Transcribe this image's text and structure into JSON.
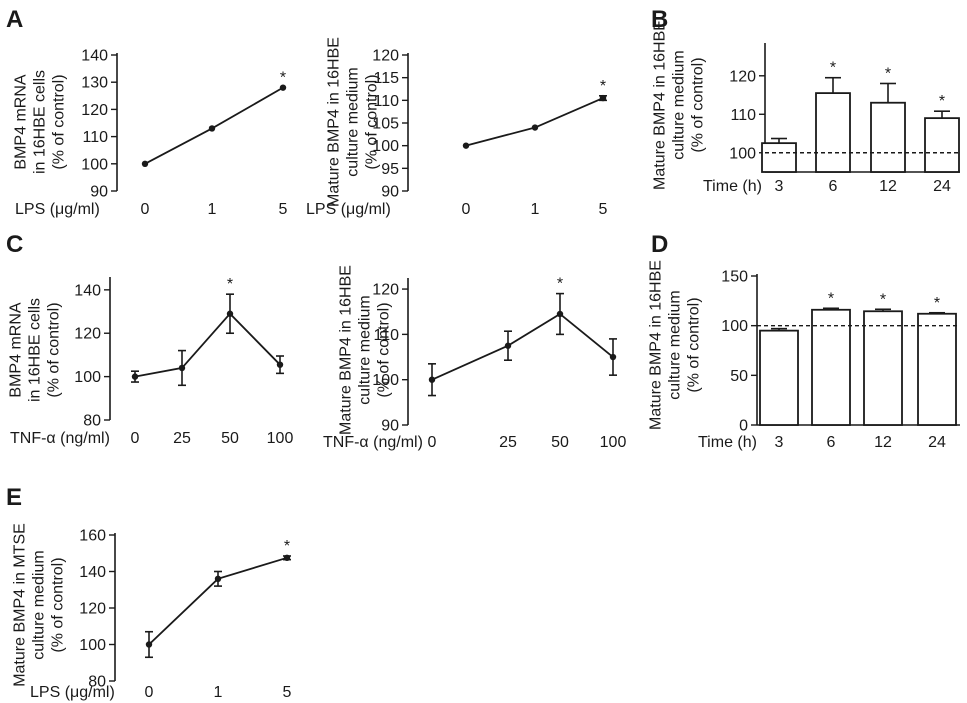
{
  "chart_data": [
    {
      "id": "A1",
      "panel_label": "A",
      "type": "line",
      "ylabel": [
        "BMP4 mRNA",
        "in 16HBE cells",
        "(% of control)"
      ],
      "xlabel": "LPS (μg/ml)",
      "categories": [
        "0",
        "1",
        "5"
      ],
      "values": [
        100,
        113,
        128
      ],
      "errors": [
        0,
        0,
        0
      ],
      "significance": [
        "",
        "",
        "*"
      ],
      "ylim": [
        90,
        140
      ],
      "yticks": [
        90,
        100,
        110,
        120,
        130,
        140
      ]
    },
    {
      "id": "A2",
      "panel_label": "",
      "type": "line",
      "ylabel": [
        "Mature BMP4 in 16HBE",
        "culture medium",
        "(% of  control)"
      ],
      "xlabel": "LPS (μg/ml)",
      "categories": [
        "0",
        "1",
        "5"
      ],
      "values": [
        100,
        104,
        110.5
      ],
      "errors": [
        0,
        0,
        0.5
      ],
      "significance": [
        "",
        "",
        "*"
      ],
      "ylim": [
        90,
        120
      ],
      "yticks": [
        90,
        95,
        100,
        105,
        110,
        115,
        120
      ]
    },
    {
      "id": "B",
      "panel_label": "B",
      "type": "bar",
      "ylabel": [
        "Mature BMP4 in 16HBE",
        "culture medium",
        "(% of  control)"
      ],
      "xlabel": "Time (h)",
      "categories": [
        "3",
        "6",
        "12",
        "24"
      ],
      "values": [
        102.5,
        115.5,
        113,
        109
      ],
      "errors": [
        1.2,
        4,
        5,
        1.8
      ],
      "significance": [
        "",
        "*",
        "*",
        "*"
      ],
      "baseline": 100,
      "ylim": [
        95,
        128
      ],
      "yticks": [
        100,
        110,
        120
      ]
    },
    {
      "id": "C1",
      "panel_label": "C",
      "type": "line",
      "ylabel": [
        "BMP4 mRNA",
        "in 16HBE cells",
        "(% of control)"
      ],
      "xlabel": "TNF-α (ng/ml)",
      "categories": [
        "0",
        "25",
        "50",
        "100"
      ],
      "values": [
        100,
        104,
        129,
        105.5
      ],
      "errors": [
        2.5,
        8,
        9,
        4
      ],
      "significance": [
        "",
        "",
        "*",
        ""
      ],
      "ylim": [
        80,
        145
      ],
      "yticks": [
        80,
        100,
        120,
        140
      ]
    },
    {
      "id": "C2",
      "panel_label": "",
      "type": "line",
      "ylabel": [
        "Mature BMP4 in 16HBE",
        "culture medium",
        "(% of  control)"
      ],
      "xlabel": "TNF-α (ng/ml)",
      "categories": [
        "0",
        "25",
        "50",
        "100"
      ],
      "values": [
        100,
        107.5,
        114.5,
        105
      ],
      "errors": [
        3.5,
        3.2,
        4.5,
        4
      ],
      "significance": [
        "",
        "",
        "*",
        ""
      ],
      "ylim": [
        90,
        122
      ],
      "yticks": [
        90,
        100,
        110,
        120
      ]
    },
    {
      "id": "D",
      "panel_label": "D",
      "type": "bar",
      "ylabel": [
        "Mature BMP4 in 16HBE",
        "culture medium",
        "(% of  control)"
      ],
      "xlabel": "Time (h)",
      "categories": [
        "3",
        "6",
        "12",
        "24"
      ],
      "values": [
        95,
        116,
        114.5,
        112
      ],
      "errors": [
        2,
        1.5,
        2,
        1
      ],
      "significance": [
        "",
        "*",
        "*",
        "*"
      ],
      "baseline": 100,
      "ylim": [
        0,
        150
      ],
      "yticks": [
        0,
        50,
        100,
        150
      ]
    },
    {
      "id": "E",
      "panel_label": "E",
      "type": "line",
      "ylabel": [
        "Mature BMP4 in MTSE",
        "culture medium",
        "(% of  control)"
      ],
      "xlabel": "LPS (μg/ml)",
      "categories": [
        "0",
        "1",
        "5"
      ],
      "values": [
        100,
        136,
        147.5
      ],
      "errors": [
        7,
        4,
        1
      ],
      "significance": [
        "",
        "",
        "*"
      ],
      "ylim": [
        80,
        160
      ],
      "yticks": [
        80,
        100,
        120,
        140,
        160
      ]
    }
  ]
}
